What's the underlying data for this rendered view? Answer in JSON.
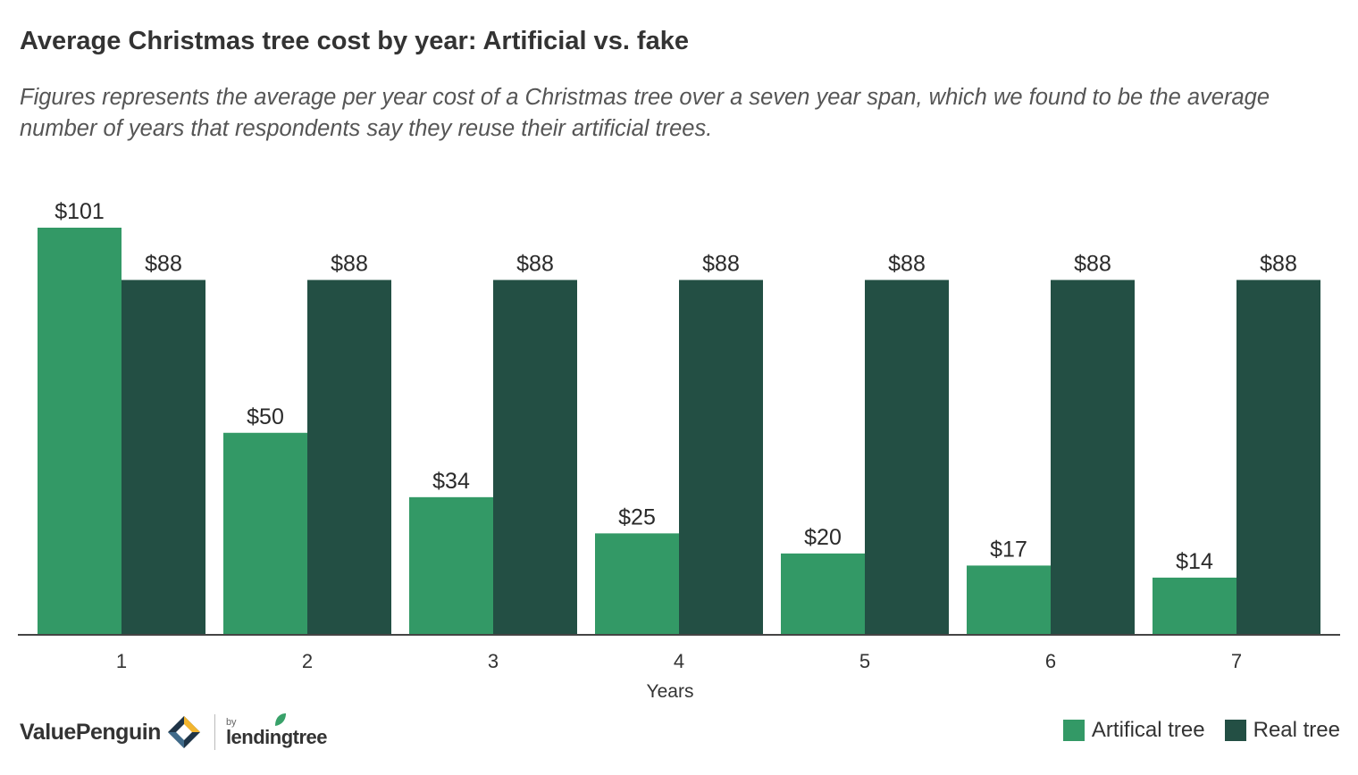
{
  "header": {
    "title": "Average Christmas tree cost by year: Artificial vs. fake",
    "subtitle": "Figures represents the average per year cost of a Christmas tree over a seven year span, which we found to be the average number of years that respondents say they reuse their artificial trees."
  },
  "chart_data": {
    "type": "bar",
    "title": "Average Christmas tree cost by year: Artificial vs. fake",
    "xlabel": "Years",
    "ylabel": "",
    "categories": [
      "1",
      "2",
      "3",
      "4",
      "5",
      "6",
      "7"
    ],
    "series": [
      {
        "name": "Artifical tree",
        "color": "#339966",
        "values": [
          101,
          50,
          34,
          25,
          20,
          17,
          14
        ],
        "labels": [
          "$101",
          "$50",
          "$34",
          "$25",
          "$20",
          "$17",
          "$14"
        ]
      },
      {
        "name": "Real tree",
        "color": "#234f44",
        "values": [
          88,
          88,
          88,
          88,
          88,
          88,
          88
        ],
        "labels": [
          "$88",
          "$88",
          "$88",
          "$88",
          "$88",
          "$88",
          "$88"
        ]
      }
    ],
    "ylim": [
      0,
      101
    ],
    "grid": false,
    "legend_position": "bottom-right"
  },
  "footer": {
    "brand": "ValuePenguin",
    "by": "by",
    "partner": "lendingtree"
  }
}
